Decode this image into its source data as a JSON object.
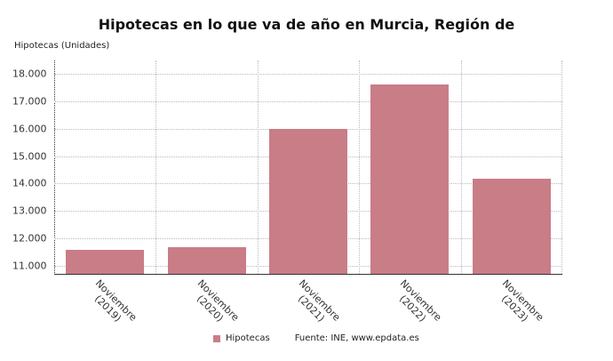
{
  "chart_data": {
    "type": "bar",
    "title": "Hipotecas en lo que va de año en Murcia, Región de",
    "xlabel": "",
    "ylabel": "Hipotecas (Unidades)",
    "categories": [
      "Noviembre (2019)",
      "Noviembre (2020)",
      "Noviembre (2021)",
      "Noviembre (2022)",
      "Noviembre (2023)"
    ],
    "category_lines": [
      [
        "Noviembre",
        "(2019)"
      ],
      [
        "Noviembre",
        "(2020)"
      ],
      [
        "Noviembre",
        "(2021)"
      ],
      [
        "Noviembre",
        "(2022)"
      ],
      [
        "Noviembre",
        "(2023)"
      ]
    ],
    "series": [
      {
        "name": "Hipotecas",
        "values": [
          11590,
          11680,
          16000,
          17620,
          14190
        ],
        "color": "#c97d86"
      }
    ],
    "ylim": [
      10700,
      18500
    ],
    "yticks": [
      11000,
      12000,
      13000,
      14000,
      15000,
      16000,
      17000,
      18000
    ],
    "ytick_labels": [
      "11.000",
      "12.000",
      "13.000",
      "14.000",
      "15.000",
      "16.000",
      "17.000",
      "18.000"
    ],
    "grid": true,
    "legend_position": "bottom"
  },
  "legend": {
    "label": "Hipotecas",
    "source": "Fuente: INE, www.epdata.es"
  }
}
